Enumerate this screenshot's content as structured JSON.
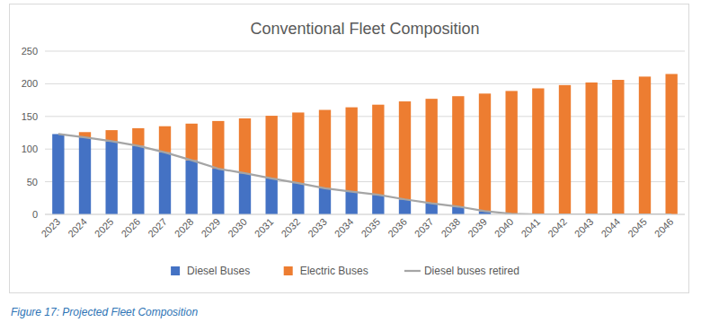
{
  "chart_data": {
    "type": "bar",
    "title": "Conventional Fleet Composition",
    "categories": [
      "2023",
      "2024",
      "2025",
      "2026",
      "2027",
      "2028",
      "2029",
      "2030",
      "2031",
      "2032",
      "2033",
      "2034",
      "2035",
      "2036",
      "2037",
      "2038",
      "2039",
      "2040",
      "2041",
      "2042",
      "2043",
      "2044",
      "2045",
      "2046"
    ],
    "stacked": true,
    "grid": true,
    "legend": "bottom",
    "ylim": [
      0,
      250
    ],
    "yticks": [
      0,
      50,
      100,
      150,
      200,
      250
    ],
    "series": [
      {
        "name": "Diesel Buses",
        "color": "#4472c4",
        "type": "bar",
        "values": [
          123,
          118,
          112,
          105,
          95,
          83,
          70,
          63,
          55,
          48,
          40,
          35,
          30,
          23,
          17,
          12,
          5,
          1,
          0,
          0,
          0,
          0,
          0,
          0
        ]
      },
      {
        "name": "Electric Buses",
        "color": "#ed7d31",
        "type": "bar",
        "values": [
          0,
          8,
          17,
          27,
          40,
          56,
          73,
          84,
          96,
          108,
          120,
          129,
          138,
          150,
          160,
          169,
          180,
          188,
          193,
          198,
          202,
          206,
          211,
          215
        ]
      },
      {
        "name": "Diesel buses retired",
        "color": "#a5a5a5",
        "type": "line",
        "values": [
          123,
          118,
          112,
          105,
          95,
          83,
          70,
          63,
          55,
          48,
          40,
          35,
          30,
          23,
          17,
          12,
          5,
          1,
          0,
          0,
          0,
          0,
          0,
          0
        ]
      }
    ]
  },
  "caption": "Figure 17: Projected Fleet Composition"
}
